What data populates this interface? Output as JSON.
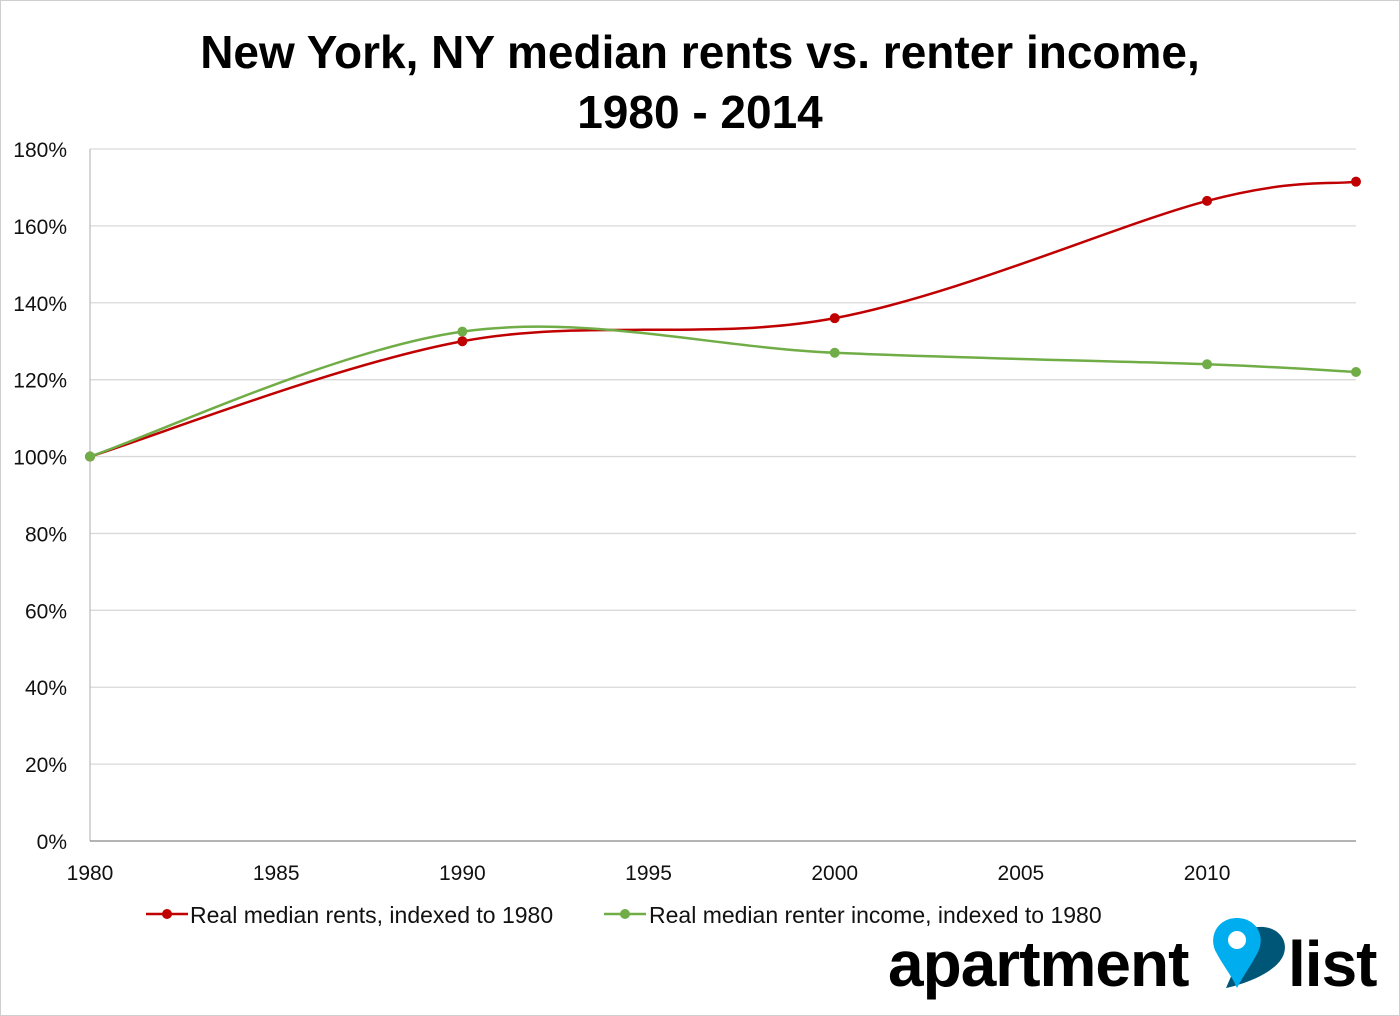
{
  "chart_data": {
    "type": "line",
    "title_lines": [
      "New York, NY median rents vs. renter income,",
      "1980 - 2014"
    ],
    "xlabel": "",
    "ylabel": "",
    "x": [
      1980,
      1990,
      2000,
      2010,
      2014
    ],
    "xlim": [
      1980,
      2014
    ],
    "x_ticks": [
      1980,
      1985,
      1990,
      1995,
      2000,
      2005,
      2010
    ],
    "x_tick_labels": [
      "1980",
      "1985",
      "1990",
      "1995",
      "2000",
      "2005",
      "2010"
    ],
    "ylim": [
      0,
      180
    ],
    "y_ticks": [
      0,
      20,
      40,
      60,
      80,
      100,
      120,
      140,
      160,
      180
    ],
    "y_tick_labels": [
      "0%",
      "20%",
      "40%",
      "60%",
      "80%",
      "100%",
      "120%",
      "140%",
      "160%",
      "180%"
    ],
    "grid": true,
    "smoothed": true,
    "legend_position": "bottom",
    "series": [
      {
        "name": "Real median rents, indexed to 1980",
        "color": "#c00000",
        "values": [
          100,
          130,
          136,
          166.5,
          171.5
        ]
      },
      {
        "name": "Real median renter income, indexed to 1980",
        "color": "#70ad47",
        "values": [
          100,
          132.5,
          127,
          124,
          122
        ]
      }
    ]
  },
  "logo": {
    "text_left": "apartment",
    "text_right": "list",
    "pin_color": "#00aeef",
    "pin_shadow_color": "#005677"
  }
}
